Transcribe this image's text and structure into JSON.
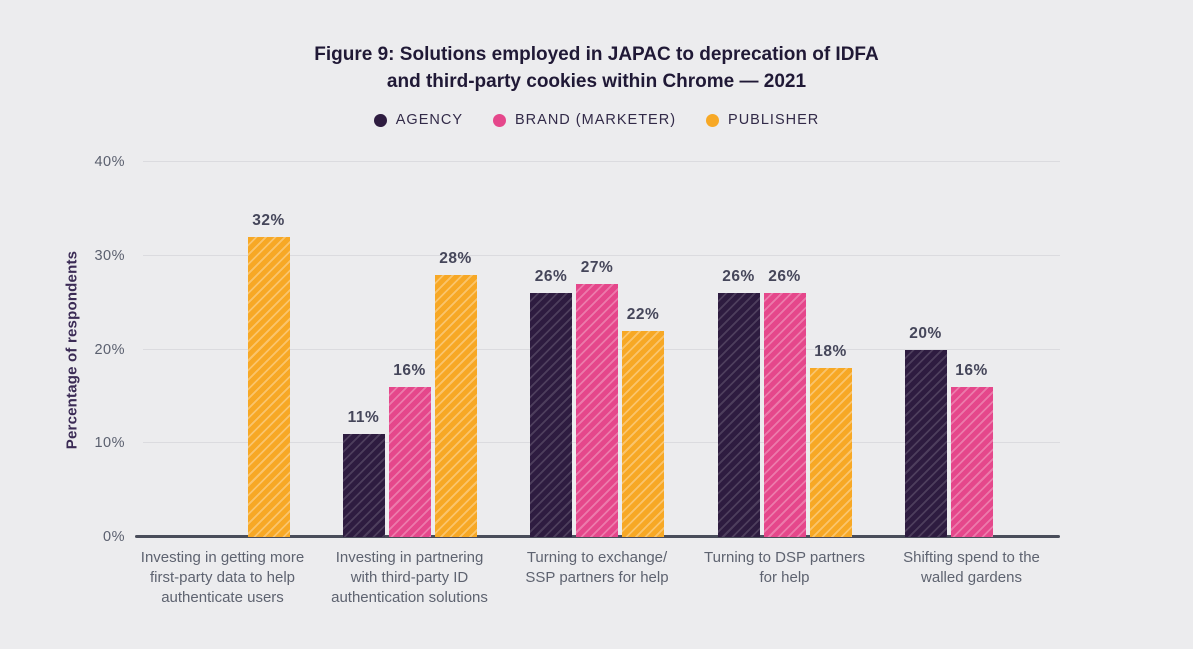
{
  "figure": {
    "title_prefix": "Figure 9:",
    "title_line1": " Solutions employed in JAPAC to deprecation of IDFA",
    "title_line2": "and third-party cookies within Chrome — 2021"
  },
  "chart_data": {
    "type": "bar",
    "title": "Figure 9: Solutions employed in JAPAC to deprecation of IDFA and third-party cookies within Chrome — 2021",
    "xlabel": "",
    "ylabel": "Percentage of respondents",
    "ylim": [
      0,
      40
    ],
    "yticks": [
      0,
      10,
      20,
      30,
      40
    ],
    "ytick_suffix": "%",
    "value_label_suffix": "%",
    "grid": true,
    "legend_position": "top",
    "background_color": "#ECECEE",
    "categories": [
      {
        "label": "Investing in getting more first-party data to help authenticate users",
        "lines": [
          "Investing in getting more",
          "first-party data to help",
          "authenticate users"
        ]
      },
      {
        "label": "Investing in partnering with third-party ID authentication solutions",
        "lines": [
          "Investing in partnering",
          "with third-party ID",
          "authentication solutions"
        ]
      },
      {
        "label": "Turning to exchange/ SSP partners for help",
        "lines": [
          "Turning to exchange/",
          "SSP partners for help"
        ]
      },
      {
        "label": "Turning to DSP partners for help",
        "lines": [
          "Turning to DSP partners",
          "for help"
        ]
      },
      {
        "label": "Shifting spend to the walled gardens",
        "lines": [
          "Shifting spend to the",
          "walled gardens"
        ]
      }
    ],
    "series": [
      {
        "key": "agency",
        "name": "AGENCY",
        "color": "#2E1C40",
        "hatch_color": "rgba(255,255,255,0.15)",
        "values": [
          null,
          11,
          26,
          26,
          20
        ]
      },
      {
        "key": "brand",
        "name": "BRAND (MARKETER)",
        "color": "#E5478B",
        "hatch_color": "rgba(255,255,255,0.28)",
        "values": [
          null,
          16,
          27,
          26,
          16
        ]
      },
      {
        "key": "publisher",
        "name": "PUBLISHER",
        "color": "#F7A825",
        "hatch_color": "rgba(255,255,255,0.32)",
        "values": [
          32,
          28,
          22,
          18,
          null
        ]
      }
    ]
  }
}
